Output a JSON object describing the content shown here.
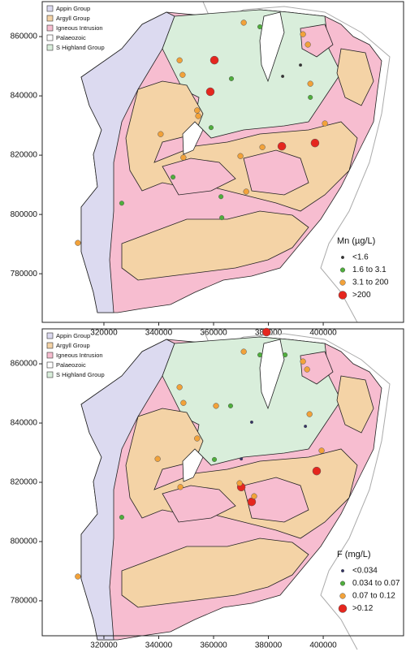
{
  "panels": [
    {
      "geology_legend": [
        {
          "label": "Appin Group",
          "color": "#dcdaf0"
        },
        {
          "label": "Argyll Group",
          "color": "#f4d3a6"
        },
        {
          "label": "Igneous Intrusion",
          "color": "#f7bdd0"
        },
        {
          "label": "Palaeozoic",
          "color": "#ffffff"
        },
        {
          "label": "S Highland Group",
          "color": "#d9eedb"
        }
      ],
      "xlim": [
        297500,
        429300
      ],
      "ylim": [
        763600,
        871800
      ],
      "xticks": [
        320000,
        340000,
        360000,
        380000,
        400000
      ],
      "yticks": [
        780000,
        800000,
        820000,
        840000,
        860000
      ],
      "points_legend": {
        "title": "Mn (µg/L)",
        "classes": [
          {
            "label": "<1.6",
            "color": "#333333"
          },
          {
            "label": "1.6 to 3.1",
            "color": "#4fae3c"
          },
          {
            "label": "3.1 to 200",
            "color": "#f2a23a"
          },
          {
            "label": ">200",
            "color": "#e5261e"
          }
        ]
      },
      "points": [
        {
          "x": 360300,
          "y": 852050,
          "class": 3
        },
        {
          "x": 358800,
          "y": 841400,
          "class": 3
        },
        {
          "x": 384900,
          "y": 823000,
          "class": 3
        },
        {
          "x": 397000,
          "y": 824100,
          "class": 3
        },
        {
          "x": 347600,
          "y": 852000,
          "class": 2
        },
        {
          "x": 348700,
          "y": 847100,
          "class": 2
        },
        {
          "x": 354000,
          "y": 835100,
          "class": 2
        },
        {
          "x": 354400,
          "y": 833200,
          "class": 2
        },
        {
          "x": 392600,
          "y": 860800,
          "class": 2
        },
        {
          "x": 394400,
          "y": 857300,
          "class": 2
        },
        {
          "x": 395300,
          "y": 844100,
          "class": 2
        },
        {
          "x": 400600,
          "y": 830700,
          "class": 2
        },
        {
          "x": 369800,
          "y": 819700,
          "class": 2
        },
        {
          "x": 377800,
          "y": 822700,
          "class": 2
        },
        {
          "x": 349000,
          "y": 819200,
          "class": 2
        },
        {
          "x": 371900,
          "y": 807700,
          "class": 2
        },
        {
          "x": 310500,
          "y": 790400,
          "class": 2
        },
        {
          "x": 371000,
          "y": 864700,
          "class": 2
        },
        {
          "x": 340700,
          "y": 827100,
          "class": 2
        },
        {
          "x": 359100,
          "y": 829300,
          "class": 1
        },
        {
          "x": 376900,
          "y": 863300,
          "class": 1
        },
        {
          "x": 362700,
          "y": 806000,
          "class": 1
        },
        {
          "x": 345200,
          "y": 812600,
          "class": 1
        },
        {
          "x": 366500,
          "y": 845800,
          "class": 1
        },
        {
          "x": 395300,
          "y": 839500,
          "class": 1
        },
        {
          "x": 326500,
          "y": 803800,
          "class": 1
        },
        {
          "x": 363000,
          "y": 798900,
          "class": 1
        },
        {
          "x": 385200,
          "y": 846600,
          "class": 0
        },
        {
          "x": 391700,
          "y": 850400,
          "class": 0
        }
      ]
    },
    {
      "geology_legend": [
        {
          "label": "Appin Group",
          "color": "#dcdaf0"
        },
        {
          "label": "Argyll Group",
          "color": "#f4d3a6"
        },
        {
          "label": "Igneous Intrusion",
          "color": "#f7bdd0"
        },
        {
          "label": "Palaeozoic",
          "color": "#ffffff"
        },
        {
          "label": "S Highland Group",
          "color": "#d9eedb"
        }
      ],
      "xlim": [
        297500,
        429300
      ],
      "ylim": [
        768200,
        871800
      ],
      "xticks": [
        320000,
        340000,
        360000,
        380000,
        400000
      ],
      "yticks": [
        780000,
        800000,
        820000,
        840000,
        860000
      ],
      "points_legend": {
        "title": "F (mg/L)",
        "classes": [
          {
            "label": "<0.034",
            "color": "#333366"
          },
          {
            "label": "0.034 to 0.07",
            "color": "#4fae3c"
          },
          {
            "label": "0.07 to 0.12",
            "color": "#f2a23a"
          },
          {
            "label": ">0.12",
            "color": "#e5261e"
          }
        ]
      },
      "points": [
        {
          "x": 379300,
          "y": 870700,
          "class": 3
        },
        {
          "x": 370100,
          "y": 818400,
          "class": 3
        },
        {
          "x": 373900,
          "y": 813400,
          "class": 3
        },
        {
          "x": 397600,
          "y": 823800,
          "class": 3
        },
        {
          "x": 347600,
          "y": 852100,
          "class": 2
        },
        {
          "x": 349000,
          "y": 846800,
          "class": 2
        },
        {
          "x": 354000,
          "y": 834800,
          "class": 2
        },
        {
          "x": 392600,
          "y": 860800,
          "class": 2
        },
        {
          "x": 394100,
          "y": 858100,
          "class": 2
        },
        {
          "x": 395000,
          "y": 843000,
          "class": 2
        },
        {
          "x": 399400,
          "y": 830700,
          "class": 2
        },
        {
          "x": 369500,
          "y": 819700,
          "class": 2
        },
        {
          "x": 374800,
          "y": 815300,
          "class": 2
        },
        {
          "x": 339600,
          "y": 827900,
          "class": 2
        },
        {
          "x": 310500,
          "y": 788200,
          "class": 2
        },
        {
          "x": 371000,
          "y": 864100,
          "class": 2
        },
        {
          "x": 360900,
          "y": 845800,
          "class": 2
        },
        {
          "x": 347900,
          "y": 818400,
          "class": 2
        },
        {
          "x": 386100,
          "y": 863000,
          "class": 1
        },
        {
          "x": 376900,
          "y": 863000,
          "class": 1
        },
        {
          "x": 326500,
          "y": 808200,
          "class": 1
        },
        {
          "x": 360300,
          "y": 827700,
          "class": 1
        },
        {
          "x": 366200,
          "y": 845800,
          "class": 1
        },
        {
          "x": 370100,
          "y": 827900,
          "class": 0
        },
        {
          "x": 373900,
          "y": 840300,
          "class": 0
        },
        {
          "x": 393500,
          "y": 838900,
          "class": 0
        }
      ]
    }
  ]
}
